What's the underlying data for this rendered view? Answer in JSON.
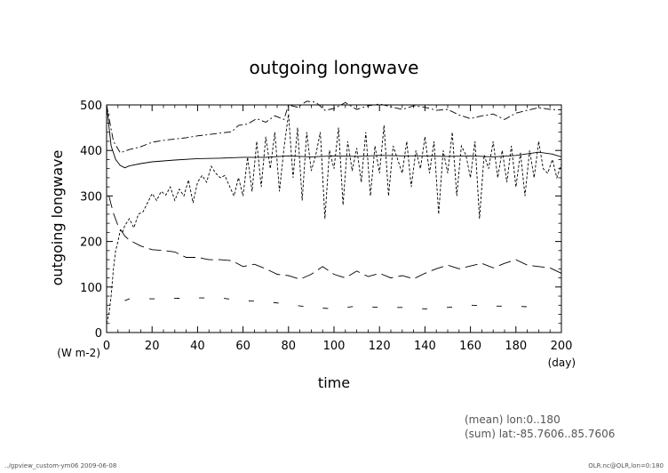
{
  "chart_data": {
    "type": "line",
    "title": "outgoing longwave",
    "xlabel": "time",
    "ylabel": "outgoing longwave",
    "xunit": "(day)",
    "yunit": "(W m-2)",
    "xlim": [
      0,
      200
    ],
    "ylim": [
      0,
      500
    ],
    "xticks": [
      0,
      20,
      40,
      60,
      80,
      100,
      120,
      140,
      160,
      180,
      200
    ],
    "yticks": [
      0,
      100,
      200,
      300,
      400,
      500
    ],
    "grid": false,
    "series": [
      {
        "style": "solid",
        "x": [
          0,
          2,
          4,
          6,
          8,
          10,
          15,
          20,
          30,
          40,
          50,
          60,
          70,
          80,
          90,
          100,
          110,
          120,
          130,
          140,
          150,
          160,
          170,
          180,
          190,
          196,
          200
        ],
        "y": [
          500,
          410,
          380,
          367,
          362,
          366,
          371,
          375,
          379,
          382,
          383,
          385,
          385,
          388,
          386,
          388,
          387,
          389,
          388,
          388,
          387,
          388,
          386,
          389,
          396,
          392,
          386
        ]
      },
      {
        "style": "dashdot",
        "x": [
          0,
          3,
          6,
          10,
          15,
          20,
          25,
          30,
          35,
          40,
          45,
          50,
          55,
          58,
          62,
          66,
          70,
          74,
          78,
          80,
          84,
          88,
          92,
          96,
          100,
          105,
          110,
          115,
          120,
          125,
          130,
          135,
          140,
          145,
          150,
          155,
          160,
          165,
          170,
          175,
          180,
          185,
          190,
          195,
          200
        ],
        "y": [
          500,
          420,
          395,
          402,
          408,
          418,
          422,
          425,
          428,
          432,
          435,
          438,
          441,
          455,
          458,
          470,
          462,
          476,
          468,
          500,
          495,
          508,
          506,
          488,
          492,
          505,
          490,
          498,
          502,
          496,
          490,
          498,
          495,
          488,
          490,
          478,
          470,
          476,
          480,
          468,
          482,
          488,
          494,
          490,
          489
        ]
      },
      {
        "style": "longdash",
        "x": [
          1,
          3,
          5,
          8,
          10,
          15,
          20,
          25,
          30,
          35,
          40,
          45,
          50,
          55,
          60,
          65,
          70,
          75,
          80,
          85,
          90,
          95,
          100,
          105,
          110,
          115,
          120,
          125,
          130,
          135,
          140,
          145,
          150,
          155,
          160,
          165,
          170,
          175,
          180,
          185,
          190,
          195,
          200
        ],
        "y": [
          300,
          262,
          235,
          212,
          203,
          190,
          182,
          180,
          177,
          165,
          165,
          160,
          160,
          158,
          145,
          150,
          140,
          128,
          125,
          117,
          128,
          145,
          128,
          120,
          135,
          123,
          130,
          120,
          125,
          118,
          130,
          140,
          148,
          140,
          146,
          152,
          142,
          152,
          160,
          148,
          145,
          142,
          130
        ]
      },
      {
        "style": "shortdash",
        "x": [
          0,
          1,
          2,
          3,
          4,
          5,
          6,
          7,
          8,
          10,
          12,
          14,
          16,
          18,
          20,
          22,
          24,
          26,
          28,
          30,
          32,
          34,
          36,
          38,
          40,
          42,
          44,
          46,
          48,
          50,
          52,
          54,
          56,
          58,
          60,
          62,
          64,
          66,
          68,
          70,
          72,
          74,
          76,
          78,
          80,
          82,
          84,
          86,
          88,
          90,
          92,
          94,
          96,
          98,
          100,
          102,
          104,
          106,
          108,
          110,
          112,
          114,
          116,
          118,
          120,
          122,
          124,
          126,
          128,
          130,
          132,
          134,
          136,
          138,
          140,
          142,
          144,
          146,
          148,
          150,
          152,
          154,
          156,
          158,
          160,
          162,
          164,
          166,
          168,
          170,
          172,
          174,
          176,
          178,
          180,
          182,
          184,
          186,
          188,
          190,
          192,
          194,
          196,
          198,
          200
        ],
        "y": [
          20,
          40,
          80,
          140,
          180,
          200,
          225,
          220,
          235,
          250,
          230,
          260,
          265,
          285,
          305,
          290,
          310,
          302,
          320,
          290,
          315,
          300,
          335,
          285,
          330,
          345,
          330,
          365,
          350,
          340,
          345,
          322,
          300,
          340,
          300,
          385,
          310,
          420,
          320,
          430,
          360,
          440,
          310,
          405,
          480,
          340,
          450,
          290,
          440,
          355,
          390,
          440,
          250,
          400,
          360,
          450,
          280,
          420,
          355,
          405,
          330,
          440,
          300,
          410,
          350,
          455,
          300,
          410,
          380,
          350,
          420,
          320,
          400,
          360,
          430,
          350,
          420,
          260,
          400,
          350,
          440,
          300,
          410,
          390,
          340,
          420,
          250,
          390,
          360,
          420,
          340,
          400,
          330,
          410,
          320,
          395,
          300,
          400,
          340,
          420,
          360,
          350,
          380,
          340,
          370
        ]
      },
      {
        "style": "brokendash",
        "x": [
          8,
          10,
          20,
          30,
          40,
          50,
          60,
          70,
          80,
          90,
          100,
          110,
          120,
          130,
          140,
          150,
          160,
          170,
          180,
          190
        ],
        "y": [
          70,
          74,
          74,
          75,
          76,
          76,
          70,
          68,
          62,
          55,
          52,
          58,
          55,
          55,
          52,
          55,
          60,
          58,
          58,
          55
        ]
      }
    ]
  },
  "footer": {
    "mean_note": "(mean) lon:0..180",
    "sum_note": "(sum) lat:-85.7606..85.7606",
    "left": "../gpview_custom-ym06  2009-06-08",
    "right": "OLR.nc@OLR,lon=0:180"
  }
}
